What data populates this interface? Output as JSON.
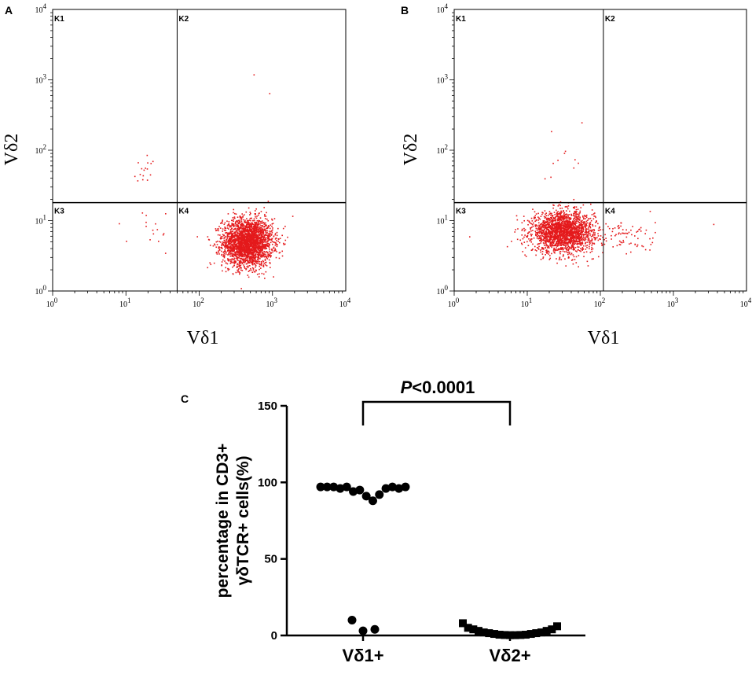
{
  "chart_data": [
    {
      "type": "scatter",
      "panel": "A",
      "xlabel": "Vδ1",
      "ylabel": "Vδ2",
      "axis_scale": "log",
      "xlim": [
        1,
        10000
      ],
      "ylim": [
        1,
        10000
      ],
      "tick_base": "10",
      "tick_exponents": [
        "0",
        "1",
        "2",
        "3",
        "4"
      ],
      "gate": {
        "x": 50,
        "y": 18
      },
      "quadrants": [
        "K1",
        "K2",
        "K3",
        "K4"
      ],
      "point_color": "#e41a1c",
      "populations": [
        {
          "name": "main",
          "count": 2600,
          "center_x": 450,
          "center_y": 5,
          "spread_x": 0.17,
          "spread_y": 0.17
        },
        {
          "name": "upper-left",
          "count": 16,
          "center_x": 18,
          "center_y": 60,
          "spread_x": 0.1,
          "spread_y": 0.1
        },
        {
          "name": "sparse-lower-left",
          "count": 16,
          "center_x": 25,
          "center_y": 7,
          "spread_x": 0.18,
          "spread_y": 0.15
        },
        {
          "name": "outliers",
          "count": 2,
          "points": [
            [
              550,
              1200
            ],
            [
              900,
              650
            ]
          ]
        }
      ]
    },
    {
      "type": "scatter",
      "panel": "B",
      "xlabel": "Vδ1",
      "ylabel": "Vδ2",
      "axis_scale": "log",
      "xlim": [
        1,
        10000
      ],
      "ylim": [
        1,
        10000
      ],
      "tick_base": "10",
      "tick_exponents": [
        "0",
        "1",
        "2",
        "3",
        "4"
      ],
      "gate": {
        "x": 110,
        "y": 18
      },
      "quadrants": [
        "K1",
        "K2",
        "K3",
        "K4"
      ],
      "point_color": "#e41a1c",
      "populations": [
        {
          "name": "main",
          "count": 2100,
          "center_x": 30,
          "center_y": 7,
          "spread_x": 0.21,
          "spread_y": 0.14
        },
        {
          "name": "lower-right",
          "count": 90,
          "center_x": 200,
          "center_y": 6,
          "spread_x": 0.22,
          "spread_y": 0.14
        },
        {
          "name": "upper",
          "count": 10,
          "center_x": 35,
          "center_y": 80,
          "spread_x": 0.15,
          "spread_y": 0.17
        },
        {
          "name": "outliers",
          "count": 3,
          "points": [
            [
              55,
              250
            ],
            [
              3500,
              9
            ],
            [
              1.6,
              6
            ]
          ]
        }
      ]
    },
    {
      "type": "scatter",
      "panel": "C",
      "ylabel_line1": "percentage in CD3+",
      "ylabel_line2": "γδTCR+ cells(%)",
      "ylim": [
        0,
        150
      ],
      "yticks": [
        "0",
        "50",
        "100",
        "150"
      ],
      "categories": [
        "Vδ1+",
        "Vδ2+"
      ],
      "significance": "P<0.0001",
      "series": [
        {
          "name": "Vδ1+",
          "marker": "circle",
          "values": [
            97,
            97,
            97,
            96,
            97,
            94,
            95,
            91,
            88,
            92,
            96,
            97,
            96,
            97,
            10,
            3,
            4
          ]
        },
        {
          "name": "Vδ2+",
          "marker": "square",
          "values": [
            8,
            5,
            4,
            3,
            2,
            1.5,
            1,
            0.5,
            0.3,
            0.2,
            0.2,
            0.3,
            0.5,
            1,
            1.5,
            2,
            3,
            4,
            6
          ]
        }
      ]
    }
  ]
}
